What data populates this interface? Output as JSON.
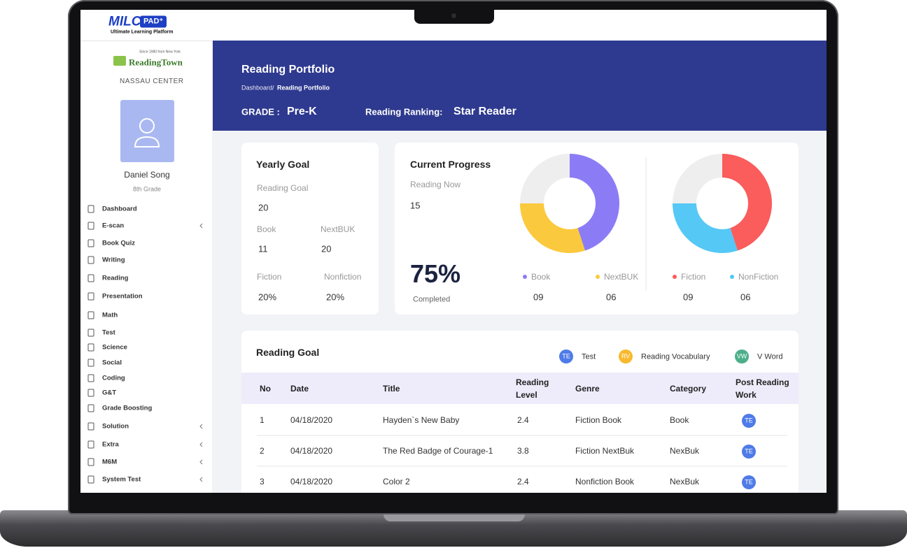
{
  "header": {
    "logo": "MILC",
    "logo_badge": "PAD⁺",
    "logo_tagline": "Ultimate Learning Platform"
  },
  "sidebar": {
    "brand_note": "Since 1980 from New York",
    "brand": "ReadingTown",
    "center": "NASSAU CENTER",
    "user_name": "Daniel Song",
    "user_grade": "8th Grade",
    "menu": [
      {
        "label": "Dashboard",
        "submenu": false
      },
      {
        "label": "E-scan",
        "submenu": true
      },
      {
        "label": "Book Quiz",
        "submenu": false
      },
      {
        "label": "Writing",
        "submenu": false
      },
      {
        "label": "Reading",
        "submenu": false
      },
      {
        "label": "Presentation",
        "submenu": false
      },
      {
        "label": "Math",
        "submenu": false
      },
      {
        "label": "Test",
        "submenu": false
      },
      {
        "label": "Science",
        "submenu": false
      },
      {
        "label": "Social",
        "submenu": false
      },
      {
        "label": "Coding",
        "submenu": false
      },
      {
        "label": "G&T",
        "submenu": false
      },
      {
        "label": "Grade Boosting",
        "submenu": false
      },
      {
        "label": "Solution",
        "submenu": true
      },
      {
        "label": "Extra",
        "submenu": true
      },
      {
        "label": "M6M",
        "submenu": true
      },
      {
        "label": "System Test",
        "submenu": true
      }
    ]
  },
  "banner": {
    "title": "Reading Portfolio",
    "breadcrumb_parent": "Dashboard/",
    "breadcrumb_current": "Reading Portfolio",
    "grade_label": "GRADE :",
    "grade": "Pre-K",
    "ranking_label": "Reading Ranking:",
    "ranking": "Star Reader"
  },
  "yearly_goal": {
    "title": "Yearly Goal",
    "reading_goal_label": "Reading Goal",
    "reading_goal": 20,
    "book_label": "Book",
    "book": 11,
    "nextbuk_label": "NextBUK",
    "nextbuk": 20,
    "fiction_label": "Fiction",
    "fiction": "20%",
    "nonfiction_label": "Nonfiction",
    "nonfiction": "20%"
  },
  "current_progress": {
    "title": "Current Progress",
    "reading_now_label": "Reading Now",
    "reading_now": 15,
    "percent": "75%",
    "completed_label": "Completed",
    "donuts": [
      {
        "labels": [
          "Book",
          "NextBUK"
        ],
        "values": [
          9,
          6
        ],
        "value_labels": [
          "09",
          "06"
        ],
        "colors": [
          "#8b7cf6",
          "#fbc93d"
        ]
      },
      {
        "labels": [
          "Fiction",
          "NonFiction"
        ],
        "values": [
          9,
          6
        ],
        "value_labels": [
          "09",
          "06"
        ],
        "colors": [
          "#fb5c5c",
          "#55c8f5"
        ]
      }
    ]
  },
  "reading_goal": {
    "title": "Reading Goal",
    "legend": [
      {
        "badge": "TE",
        "label": "Test",
        "color": "#4f7be8"
      },
      {
        "badge": "RV",
        "label": "Reading Vocabulary",
        "color": "#f8b92e"
      },
      {
        "badge": "VW",
        "label": "V Word",
        "color": "#4caf8a"
      }
    ],
    "columns": [
      "No",
      "Date",
      "Title",
      "Reading Level",
      "Genre",
      "Category",
      "Post Reading Work"
    ],
    "rows": [
      [
        "1",
        "04/18/2020",
        "Hayden`s New Baby",
        "2.4",
        "Fiction Book",
        "Book",
        "TE"
      ],
      [
        "2",
        "04/18/2020",
        "The Red Badge of Courage-1",
        "3.8",
        "Fiction NextBuk",
        "NexBuk",
        "TE"
      ],
      [
        "3",
        "04/18/2020",
        "Color 2",
        "2.4",
        "Nonfiction Book",
        "NexBuk",
        "TE"
      ]
    ]
  }
}
